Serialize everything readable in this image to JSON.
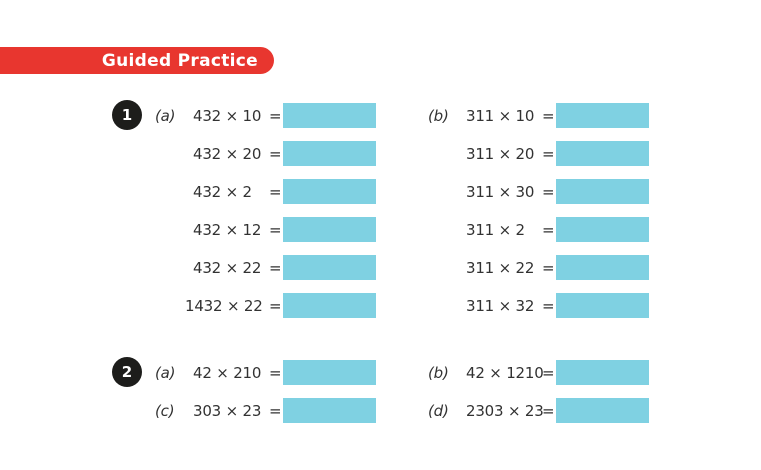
{
  "banner": {
    "label": "Guided Practice"
  },
  "colors": {
    "banner_red": "#e8362f",
    "box_blue": "#7fd1e2",
    "badge_bg": "#1d1d1b"
  },
  "problem1": {
    "number": "1",
    "col_a": {
      "part": "(a)",
      "rows": [
        {
          "expr": "432 × 10",
          "eq": "="
        },
        {
          "expr": "432 × 20",
          "eq": "="
        },
        {
          "expr": "432 × 2",
          "eq": "="
        },
        {
          "expr": "432 × 12",
          "eq": "="
        },
        {
          "expr": "432 × 22",
          "eq": "="
        },
        {
          "expr": "1432 × 22",
          "eq": "="
        }
      ]
    },
    "col_b": {
      "part": "(b)",
      "rows": [
        {
          "expr": "311 × 10",
          "eq": "="
        },
        {
          "expr": "311 × 20",
          "eq": "="
        },
        {
          "expr": "311 × 30",
          "eq": "="
        },
        {
          "expr": "311 × 2",
          "eq": "="
        },
        {
          "expr": "311 × 22",
          "eq": "="
        },
        {
          "expr": "311 × 32",
          "eq": "="
        }
      ]
    }
  },
  "problem2": {
    "number": "2",
    "rows": [
      {
        "part": "(a)",
        "expr": "42 × 210",
        "eq": "="
      },
      {
        "part": "(b)",
        "expr": "42 × 1210",
        "eq": "="
      },
      {
        "part": "(c)",
        "expr": "303 × 23",
        "eq": "="
      },
      {
        "part": "(d)",
        "expr": "2303 × 23",
        "eq": "="
      }
    ]
  }
}
